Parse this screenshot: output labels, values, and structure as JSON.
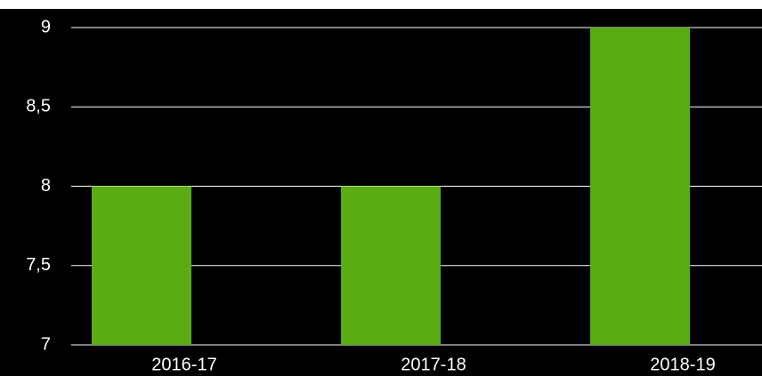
{
  "chart_data": {
    "type": "bar",
    "categories": [
      "2016-17",
      "2017-18",
      "2018-19"
    ],
    "values": [
      8,
      8,
      9
    ],
    "color": "#5aac14",
    "ylim": [
      7,
      9
    ],
    "yticks": [
      7,
      {
        "value": 7.5,
        "label": "7,5"
      },
      8,
      {
        "value": 8.5,
        "label": "8,5"
      },
      9
    ],
    "grid": true
  }
}
